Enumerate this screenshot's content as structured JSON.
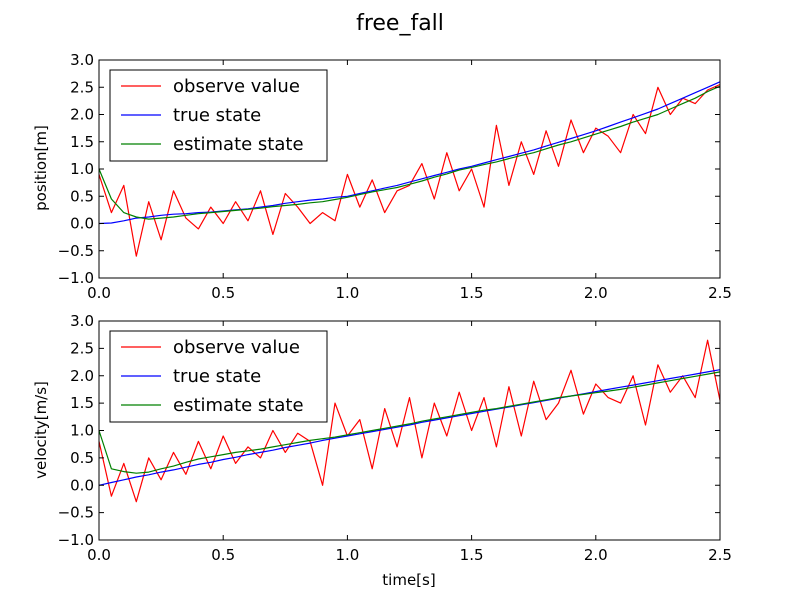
{
  "figure": {
    "title": "free_fall"
  },
  "colors": {
    "observe": "#ff0000",
    "true": "#0000ff",
    "estimate": "#008000"
  },
  "chart_data": [
    {
      "type": "line",
      "xlabel": "",
      "ylabel": "position[m]",
      "xlim": [
        0.0,
        2.5
      ],
      "ylim": [
        -1.0,
        3.0
      ],
      "xticks": [
        "0.0",
        "0.5",
        "1.0",
        "1.5",
        "2.0",
        "2.5"
      ],
      "yticks": [
        "−1.0",
        "−0.5",
        "0.0",
        "0.5",
        "1.0",
        "1.5",
        "2.0",
        "2.5",
        "3.0"
      ],
      "legend_loc": "upper-left",
      "x": [
        0.0,
        0.05,
        0.1,
        0.15,
        0.2,
        0.25,
        0.3,
        0.35,
        0.4,
        0.45,
        0.5,
        0.55,
        0.6,
        0.65,
        0.7,
        0.75,
        0.8,
        0.85,
        0.9,
        0.95,
        1.0,
        1.05,
        1.1,
        1.15,
        1.2,
        1.25,
        1.3,
        1.35,
        1.4,
        1.45,
        1.5,
        1.55,
        1.6,
        1.65,
        1.7,
        1.75,
        1.8,
        1.85,
        1.9,
        1.95,
        2.0,
        2.05,
        2.1,
        2.15,
        2.2,
        2.25,
        2.3,
        2.35,
        2.4,
        2.45,
        2.5
      ],
      "series": [
        {
          "name": "observe value",
          "color_key": "observe",
          "values": [
            0.9,
            0.2,
            0.7,
            -0.6,
            0.4,
            -0.3,
            0.6,
            0.1,
            -0.1,
            0.3,
            0.0,
            0.4,
            0.05,
            0.6,
            -0.2,
            0.55,
            0.3,
            0.0,
            0.2,
            0.05,
            0.9,
            0.3,
            0.8,
            0.2,
            0.6,
            0.7,
            1.1,
            0.45,
            1.3,
            0.6,
            1.0,
            0.3,
            1.8,
            0.7,
            1.5,
            0.9,
            1.7,
            1.05,
            1.9,
            1.3,
            1.75,
            1.6,
            1.3,
            2.0,
            1.65,
            2.5,
            2.0,
            2.3,
            2.2,
            2.45,
            2.55
          ]
        },
        {
          "name": "true state",
          "color_key": "true",
          "values": [
            0.0,
            0.01,
            0.05,
            0.1,
            0.12,
            0.15,
            0.17,
            0.18,
            0.2,
            0.21,
            0.23,
            0.25,
            0.27,
            0.3,
            0.33,
            0.37,
            0.4,
            0.43,
            0.45,
            0.48,
            0.5,
            0.55,
            0.6,
            0.65,
            0.7,
            0.76,
            0.82,
            0.88,
            0.94,
            1.0,
            1.05,
            1.11,
            1.17,
            1.23,
            1.29,
            1.35,
            1.42,
            1.49,
            1.56,
            1.63,
            1.7,
            1.78,
            1.86,
            1.94,
            2.02,
            2.1,
            2.2,
            2.3,
            2.4,
            2.5,
            2.6
          ]
        },
        {
          "name": "estimate state",
          "color_key": "estimate",
          "values": [
            1.0,
            0.45,
            0.2,
            0.12,
            0.08,
            0.1,
            0.12,
            0.15,
            0.18,
            0.2,
            0.22,
            0.24,
            0.26,
            0.28,
            0.31,
            0.33,
            0.35,
            0.38,
            0.4,
            0.44,
            0.48,
            0.53,
            0.58,
            0.62,
            0.66,
            0.72,
            0.78,
            0.85,
            0.91,
            0.98,
            1.03,
            1.08,
            1.13,
            1.19,
            1.25,
            1.3,
            1.37,
            1.44,
            1.5,
            1.57,
            1.64,
            1.71,
            1.78,
            1.86,
            1.93,
            2.0,
            2.1,
            2.2,
            2.3,
            2.42,
            2.52
          ]
        }
      ]
    },
    {
      "type": "line",
      "xlabel": "time[s]",
      "ylabel": "velocity[m/s]",
      "xlim": [
        0.0,
        2.5
      ],
      "ylim": [
        -1.0,
        3.0
      ],
      "xticks": [
        "0.0",
        "0.5",
        "1.0",
        "1.5",
        "2.0",
        "2.5"
      ],
      "yticks": [
        "−1.0",
        "−0.5",
        "0.0",
        "0.5",
        "1.0",
        "1.5",
        "2.0",
        "2.5",
        "3.0"
      ],
      "legend_loc": "upper-left",
      "x": [
        0.0,
        0.05,
        0.1,
        0.15,
        0.2,
        0.25,
        0.3,
        0.35,
        0.4,
        0.45,
        0.5,
        0.55,
        0.6,
        0.65,
        0.7,
        0.75,
        0.8,
        0.85,
        0.9,
        0.95,
        1.0,
        1.05,
        1.1,
        1.15,
        1.2,
        1.25,
        1.3,
        1.35,
        1.4,
        1.45,
        1.5,
        1.55,
        1.6,
        1.65,
        1.7,
        1.75,
        1.8,
        1.85,
        1.9,
        1.95,
        2.0,
        2.05,
        2.1,
        2.15,
        2.2,
        2.25,
        2.3,
        2.35,
        2.4,
        2.45,
        2.5
      ],
      "series": [
        {
          "name": "observe value",
          "color_key": "observe",
          "values": [
            0.8,
            -0.2,
            0.4,
            -0.3,
            0.5,
            0.1,
            0.6,
            0.2,
            0.8,
            0.3,
            0.9,
            0.4,
            0.7,
            0.5,
            1.0,
            0.6,
            0.95,
            0.8,
            0.0,
            1.5,
            0.9,
            1.2,
            0.3,
            1.4,
            0.7,
            1.6,
            0.5,
            1.5,
            0.9,
            1.7,
            1.0,
            1.6,
            0.7,
            1.8,
            0.9,
            1.9,
            1.2,
            1.5,
            2.1,
            1.3,
            1.85,
            1.6,
            1.5,
            2.0,
            1.1,
            2.2,
            1.7,
            2.0,
            1.6,
            2.65,
            1.55
          ]
        },
        {
          "name": "true state",
          "color_key": "true",
          "values": [
            0.0,
            0.05,
            0.1,
            0.15,
            0.19,
            0.24,
            0.28,
            0.33,
            0.38,
            0.42,
            0.47,
            0.51,
            0.56,
            0.6,
            0.64,
            0.69,
            0.73,
            0.77,
            0.82,
            0.86,
            0.9,
            0.94,
            0.98,
            1.02,
            1.06,
            1.1,
            1.15,
            1.19,
            1.23,
            1.27,
            1.31,
            1.35,
            1.39,
            1.43,
            1.47,
            1.51,
            1.55,
            1.59,
            1.63,
            1.67,
            1.71,
            1.75,
            1.79,
            1.83,
            1.87,
            1.91,
            1.95,
            1.99,
            2.03,
            2.07,
            2.11
          ]
        },
        {
          "name": "estimate state",
          "color_key": "estimate",
          "values": [
            1.0,
            0.3,
            0.25,
            0.22,
            0.24,
            0.3,
            0.35,
            0.42,
            0.48,
            0.52,
            0.56,
            0.6,
            0.63,
            0.66,
            0.7,
            0.74,
            0.78,
            0.82,
            0.85,
            0.88,
            0.92,
            0.96,
            1.0,
            1.04,
            1.08,
            1.12,
            1.17,
            1.21,
            1.25,
            1.29,
            1.33,
            1.37,
            1.4,
            1.44,
            1.48,
            1.52,
            1.56,
            1.6,
            1.63,
            1.66,
            1.69,
            1.72,
            1.75,
            1.79,
            1.83,
            1.87,
            1.91,
            1.95,
            1.99,
            2.03,
            2.07
          ]
        }
      ]
    }
  ]
}
